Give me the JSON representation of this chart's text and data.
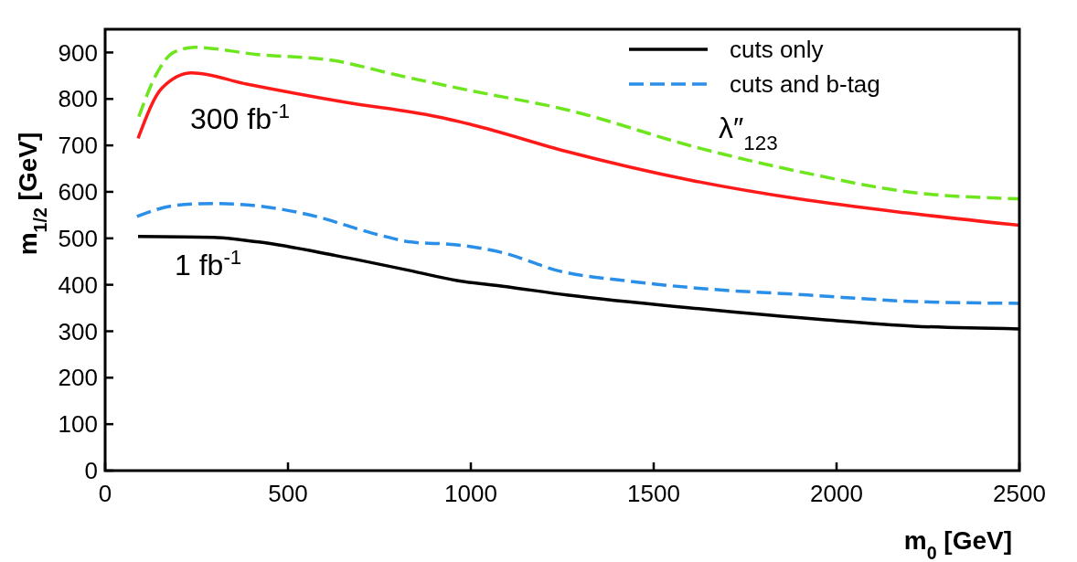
{
  "chart_data": {
    "type": "line",
    "xlabel": "m$_{0}$ [GeV]",
    "ylabel": "m$_{1/2}$ [GeV]",
    "xlim": [
      0,
      2500
    ],
    "xticks": [
      0,
      500,
      1000,
      1500,
      2000,
      2500
    ],
    "ylim": [
      0,
      950
    ],
    "yticks": [
      0,
      100,
      200,
      300,
      400,
      500,
      600,
      700,
      800,
      900
    ],
    "grid": false,
    "legend": "top right",
    "series": [
      {
        "color": "#6ee61e",
        "line_style": "dashed",
        "x": [
          92,
          142,
          187,
          245,
          412,
          630,
          795,
          1005,
          1255,
          1630,
          1920,
          2195,
          2500
        ],
        "values": [
          762,
          856,
          900,
          911,
          896,
          882,
          852,
          817,
          778,
          693,
          640,
          600,
          585
        ]
      },
      {
        "color": "#ff1a1a",
        "line_style": "solid",
        "x": [
          90,
          155,
          237,
          387,
          655,
          905,
          1005,
          1262,
          1595,
          1895,
          2187,
          2500
        ],
        "values": [
          715,
          823,
          856,
          832,
          793,
          762,
          744,
          687,
          626,
          585,
          555,
          528
        ]
      },
      {
        "name": "cuts only",
        "color": "#000000",
        "line_style": "solid",
        "x": [
          90,
          295,
          420,
          630,
          837,
          962,
          1087,
          1262,
          1630,
          1962,
          2212,
          2500
        ],
        "values": [
          504,
          502,
          492,
          463,
          430,
          409,
          397,
          378,
          348,
          325,
          311,
          305
        ]
      },
      {
        "name": "cuts and b-tag",
        "color": "#2a8fe8",
        "line_style": "dashed",
        "x": [
          87,
          195,
          295,
          462,
          587,
          687,
          755,
          837,
          962,
          1087,
          1245,
          1420,
          1630,
          1920,
          2212,
          2500
        ],
        "values": [
          547,
          571,
          575,
          565,
          545,
          521,
          506,
          492,
          486,
          469,
          429,
          409,
          392,
          378,
          364,
          360
        ]
      }
    ],
    "annotations": [
      "300 fb$^{-1}$",
      "1 fb$^{-1}$",
      "λ″$_{123}$"
    ]
  }
}
